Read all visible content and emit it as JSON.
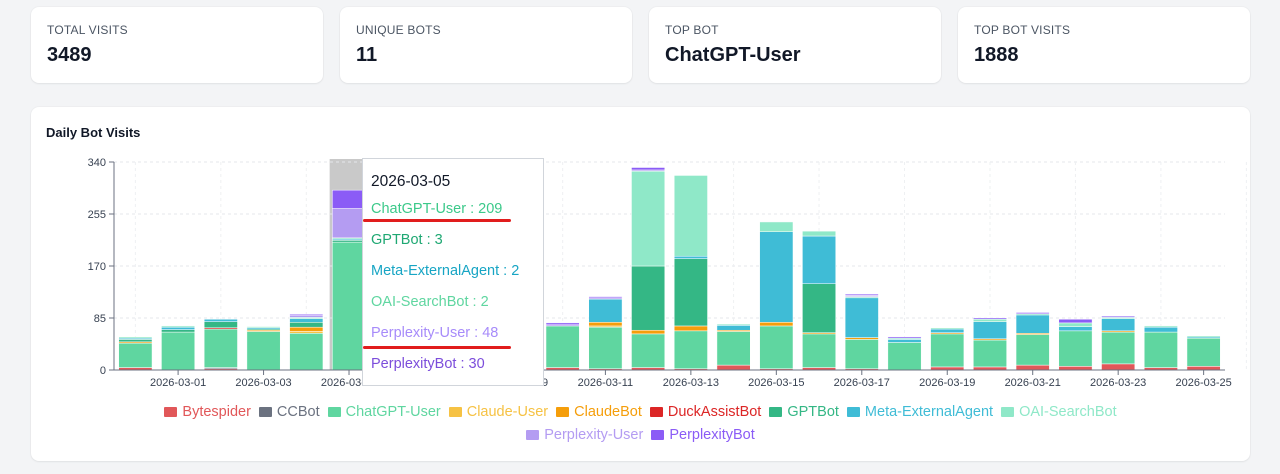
{
  "stats": [
    {
      "label": "TOTAL VISITS",
      "value": "3489"
    },
    {
      "label": "UNIQUE BOTS",
      "value": "11"
    },
    {
      "label": "TOP BOT",
      "value": "ChatGPT-User"
    },
    {
      "label": "TOP BOT VISITS",
      "value": "1888"
    }
  ],
  "chart_data": {
    "type": "bar",
    "stacked": true,
    "title": "Daily Bot Visits",
    "ylim": [
      0,
      340
    ],
    "yticks": [
      0,
      85,
      170,
      255,
      340
    ],
    "grid": true,
    "legend_position": "bottom",
    "categories": [
      "2026-02-28",
      "2026-03-01",
      "2026-03-02",
      "2026-03-03",
      "2026-03-04",
      "2026-03-05",
      "2026-03-06",
      "2026-03-07",
      "2026-03-08",
      "2026-03-09",
      "2026-03-10",
      "2026-03-11",
      "2026-03-12",
      "2026-03-13",
      "2026-03-14",
      "2026-03-15",
      "2026-03-16",
      "2026-03-17",
      "2026-03-18",
      "2026-03-19",
      "2026-03-20",
      "2026-03-21",
      "2026-03-22",
      "2026-03-23",
      "2026-03-24",
      "2026-03-25"
    ],
    "xtick_labels": [
      "2026-03-01",
      "2026-03-03",
      "2026-03-05",
      "2026-03-07",
      "2026-03-09",
      "2026-03-11",
      "2026-03-13",
      "2026-03-15",
      "2026-03-17",
      "2026-03-19",
      "2026-03-21",
      "2026-03-23",
      "2026-03-25"
    ],
    "series": [
      {
        "name": "Bytespider",
        "color": "#e15759",
        "values": [
          4,
          0,
          2,
          0,
          0,
          0,
          0,
          0,
          0,
          0,
          4,
          2,
          4,
          2,
          8,
          2,
          4,
          2,
          0,
          5,
          5,
          8,
          6,
          10,
          4,
          6
        ]
      },
      {
        "name": "CCBot",
        "color": "#6b7280",
        "values": [
          0,
          0,
          2,
          0,
          0,
          0,
          0,
          0,
          0,
          0,
          0,
          0,
          0,
          0,
          0,
          0,
          0,
          0,
          0,
          0,
          0,
          0,
          0,
          0,
          0,
          0
        ]
      },
      {
        "name": "ChatGPT-User",
        "color": "#5fd6a0",
        "values": [
          40,
          62,
          63,
          63,
          60,
          209,
          45,
          40,
          35,
          50,
          68,
          68,
          55,
          62,
          55,
          70,
          55,
          48,
          45,
          54,
          44,
          50,
          58,
          52,
          58,
          46
        ]
      },
      {
        "name": "Claude-User",
        "color": "#f6c244",
        "values": [
          0,
          0,
          0,
          0,
          3,
          0,
          0,
          0,
          0,
          0,
          0,
          2,
          0,
          0,
          0,
          0,
          0,
          0,
          0,
          0,
          0,
          0,
          0,
          0,
          0,
          0
        ]
      },
      {
        "name": "ClaudeBot",
        "color": "#f59e0b",
        "values": [
          2,
          0,
          0,
          2,
          7,
          0,
          0,
          0,
          0,
          0,
          0,
          6,
          6,
          8,
          2,
          6,
          2,
          3,
          0,
          2,
          2,
          2,
          0,
          2,
          0,
          0
        ]
      },
      {
        "name": "DuckAssistBot",
        "color": "#dc2626",
        "values": [
          0,
          0,
          2,
          0,
          0,
          0,
          0,
          0,
          0,
          0,
          0,
          0,
          0,
          0,
          0,
          0,
          0,
          0,
          0,
          0,
          0,
          0,
          0,
          0,
          0,
          0
        ]
      },
      {
        "name": "GPTBot",
        "color": "#34b785",
        "values": [
          4,
          4,
          10,
          2,
          8,
          3,
          0,
          0,
          0,
          0,
          0,
          0,
          105,
          110,
          0,
          0,
          80,
          0,
          0,
          0,
          0,
          0,
          0,
          0,
          0,
          0
        ]
      },
      {
        "name": "Meta-ExternalAgent",
        "color": "#3fbcd6",
        "values": [
          2,
          4,
          4,
          2,
          6,
          2,
          0,
          0,
          0,
          0,
          0,
          38,
          0,
          4,
          8,
          148,
          78,
          65,
          5,
          6,
          28,
          30,
          7,
          20,
          8,
          2
        ]
      },
      {
        "name": "OAI-SearchBot",
        "color": "#8fe8c8",
        "values": [
          2,
          2,
          0,
          2,
          2,
          2,
          0,
          0,
          0,
          0,
          0,
          0,
          155,
          132,
          2,
          16,
          8,
          2,
          2,
          2,
          4,
          2,
          6,
          2,
          2,
          2
        ]
      },
      {
        "name": "Perplexity-User",
        "color": "#b49cf2",
        "values": [
          0,
          0,
          0,
          0,
          3,
          48,
          0,
          0,
          0,
          0,
          2,
          2,
          2,
          0,
          0,
          0,
          0,
          2,
          0,
          0,
          0,
          0,
          0,
          0,
          0,
          0
        ]
      },
      {
        "name": "PerplexityBot",
        "color": "#8b5cf6",
        "values": [
          0,
          0,
          0,
          0,
          2,
          30,
          0,
          0,
          0,
          0,
          3,
          2,
          4,
          0,
          0,
          0,
          0,
          2,
          2,
          0,
          2,
          2,
          6,
          2,
          0,
          0
        ]
      }
    ],
    "hover_index": 5
  },
  "tooltip": {
    "date": "2026-03-05",
    "rows": [
      {
        "text": "ChatGPT-User : 209",
        "color": "#3cc98a"
      },
      {
        "text": "GPTBot : 3",
        "color": "#1fa873"
      },
      {
        "text": "Meta-ExternalAgent : 2",
        "color": "#17a5c4"
      },
      {
        "text": "OAI-SearchBot : 2",
        "color": "#5fd6a0"
      },
      {
        "text": "Perplexity-User : 48",
        "color": "#a78bfa"
      },
      {
        "text": "PerplexityBot : 30",
        "color": "#7c4ddb"
      }
    ]
  }
}
